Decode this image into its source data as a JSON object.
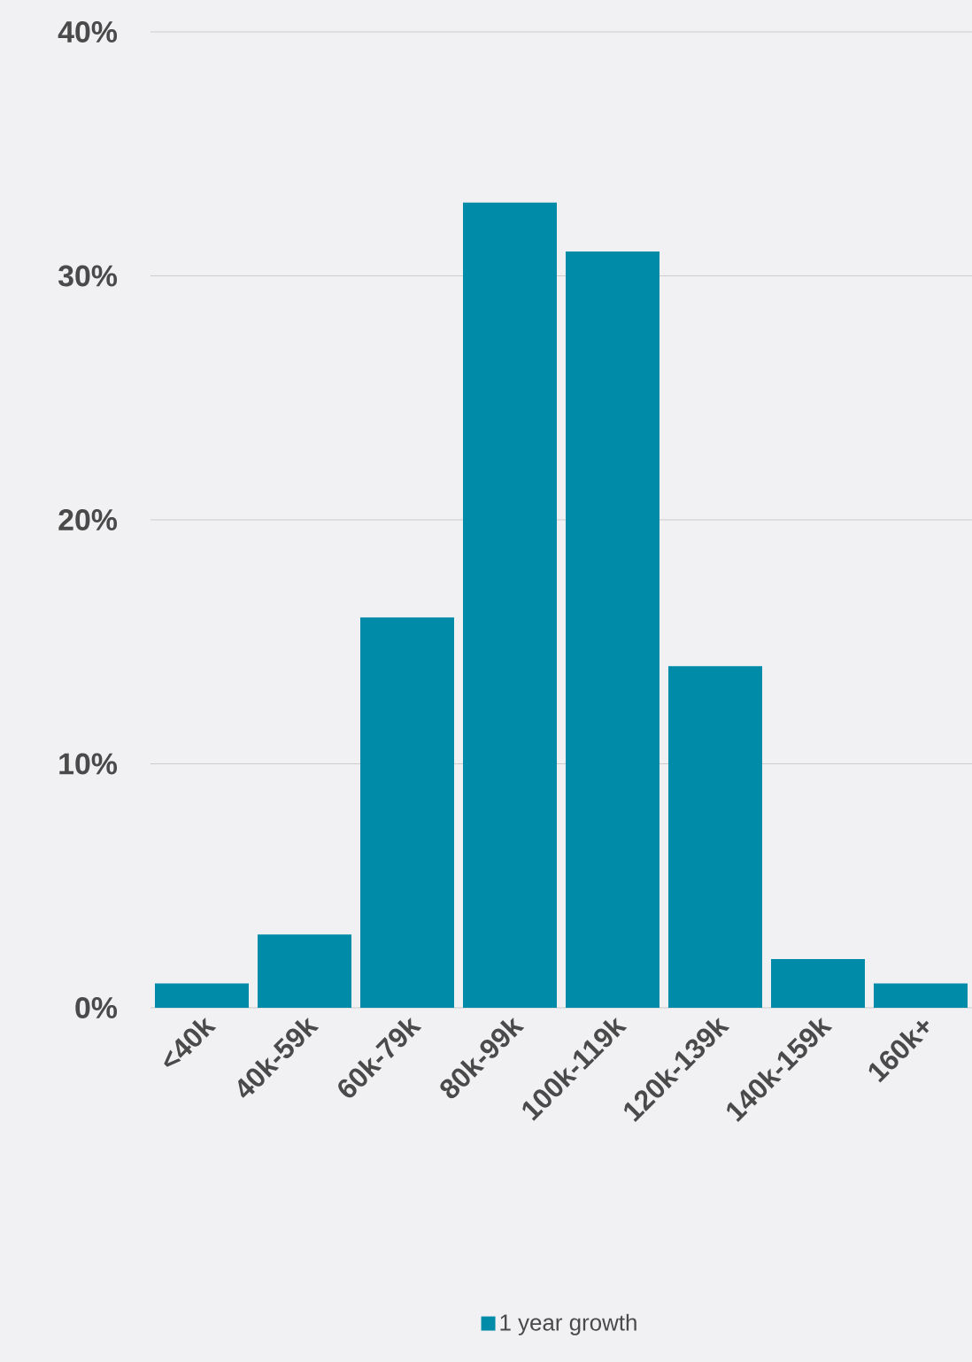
{
  "chart_data": {
    "type": "bar",
    "categories": [
      "<40k",
      "40k-59k",
      "60k-79k",
      "80k-99k",
      "100k-119k",
      "120k-139k",
      "140k-159k",
      "160k+"
    ],
    "series": [
      {
        "name": "1 year growth",
        "color": "#008ca8",
        "values": [
          1,
          3,
          16,
          33,
          31,
          14,
          2,
          1
        ]
      }
    ],
    "ylim": [
      0,
      40
    ],
    "yticks": [
      {
        "value": 0,
        "label": "0%"
      },
      {
        "value": 10,
        "label": "10%"
      },
      {
        "value": 20,
        "label": "20%"
      },
      {
        "value": 30,
        "label": "30%"
      },
      {
        "value": 40,
        "label": "40%"
      }
    ],
    "grid": "y",
    "legend": "bottom"
  }
}
